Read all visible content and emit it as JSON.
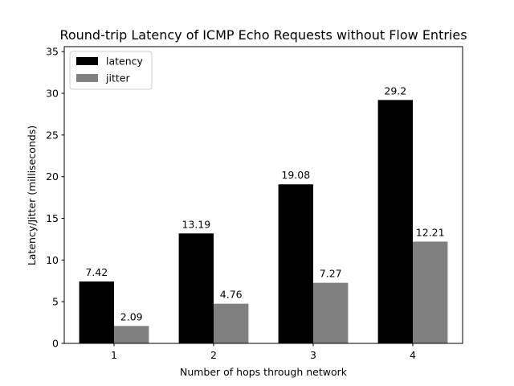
{
  "chart_data": {
    "type": "bar",
    "title": "Round-trip Latency of ICMP Echo Requests without Flow Entries",
    "xlabel": "Number of hops through network",
    "ylabel": "Latency/Jitter (milliseconds)",
    "categories": [
      "1",
      "2",
      "3",
      "4"
    ],
    "series": [
      {
        "name": "latency",
        "color": "#000000",
        "values": [
          7.42,
          13.19,
          19.08,
          29.2
        ],
        "labels": [
          "7.42",
          "13.19",
          "19.08",
          "29.2"
        ]
      },
      {
        "name": "jitter",
        "color": "#808080",
        "values": [
          2.09,
          4.76,
          7.27,
          12.21
        ],
        "labels": [
          "2.09",
          "4.76",
          "7.27",
          "12.21"
        ]
      }
    ],
    "ylim": [
      0,
      35.6
    ],
    "yticks": [
      0,
      5,
      10,
      15,
      20,
      25,
      30,
      35
    ],
    "grid": false,
    "legend_position": "top-left"
  }
}
